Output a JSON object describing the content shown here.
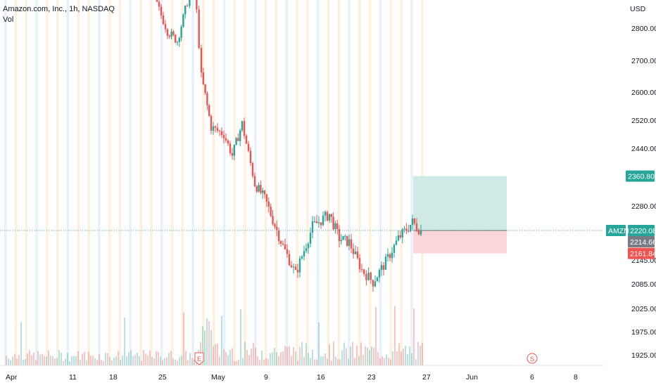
{
  "chart_data": {
    "type": "candlestick",
    "symbol_title": "Amazon.com, Inc., 1h, NASDAQ",
    "volume_label": "Vol",
    "currency": "USD",
    "y_ticks": [
      1925,
      1975,
      2025,
      2085,
      2145,
      2220,
      2280,
      2360,
      2440,
      2520,
      2600,
      2700,
      2800
    ],
    "y_tick_labels": [
      "1925.00",
      "1975.00",
      "2025.00",
      "2085.00",
      "2145.00",
      "2220.00",
      "2280.00",
      "2360.00",
      "2440.00",
      "2520.00",
      "2600.00",
      "2700.00",
      "2800.00"
    ],
    "x_ticks": [
      "Apr",
      "11",
      "18",
      "25",
      "May",
      "9",
      "16",
      "23",
      "27",
      "Jun",
      "6",
      "8"
    ],
    "price_path": [
      [
        "Apr 22",
        2890
      ],
      [
        "Apr 25",
        2790
      ],
      [
        "Apr 26",
        2760
      ],
      [
        "Apr 27",
        2880
      ],
      [
        "Apr 28",
        2950
      ],
      [
        "Apr 29",
        2650
      ],
      [
        "May 2",
        2500
      ],
      [
        "May 4",
        2480
      ],
      [
        "May 5",
        2420
      ],
      [
        "May 6",
        2510
      ],
      [
        "May 9",
        2340
      ],
      [
        "May 10",
        2300
      ],
      [
        "May 12",
        2180
      ],
      [
        "May 13",
        2110
      ],
      [
        "May 16",
        2230
      ],
      [
        "May 18",
        2260
      ],
      [
        "May 19",
        2200
      ],
      [
        "May 20",
        2190
      ],
      [
        "May 23",
        2120
      ],
      [
        "May 24",
        2090
      ],
      [
        "May 25",
        2140
      ],
      [
        "May 26",
        2200
      ],
      [
        "May 27",
        2240
      ],
      [
        "May 27 close",
        2218
      ]
    ],
    "long_position": {
      "entry": 2220.08,
      "target": 2360.8,
      "stop": 2161.84,
      "target_label": "2360.80",
      "stop_label": "2161.84",
      "entry_label": "2220.08",
      "symbol_tag": "AMZN",
      "last_price_label": "2214.66"
    },
    "markers": [
      {
        "label": "E",
        "at": "Apr 29",
        "meaning": "earnings"
      },
      {
        "label": "S",
        "at": "Jun 6",
        "meaning": "split"
      }
    ],
    "colors": {
      "up": "#26a69a",
      "down": "#ef5350",
      "target_zone": "#cfeae4",
      "stop_zone": "#fbd5d8",
      "session_band_a": "#fdf0dc",
      "session_band_b": "#e7f1fb",
      "axis_text": "#131722",
      "crosshair": "#2f9c8f"
    }
  }
}
